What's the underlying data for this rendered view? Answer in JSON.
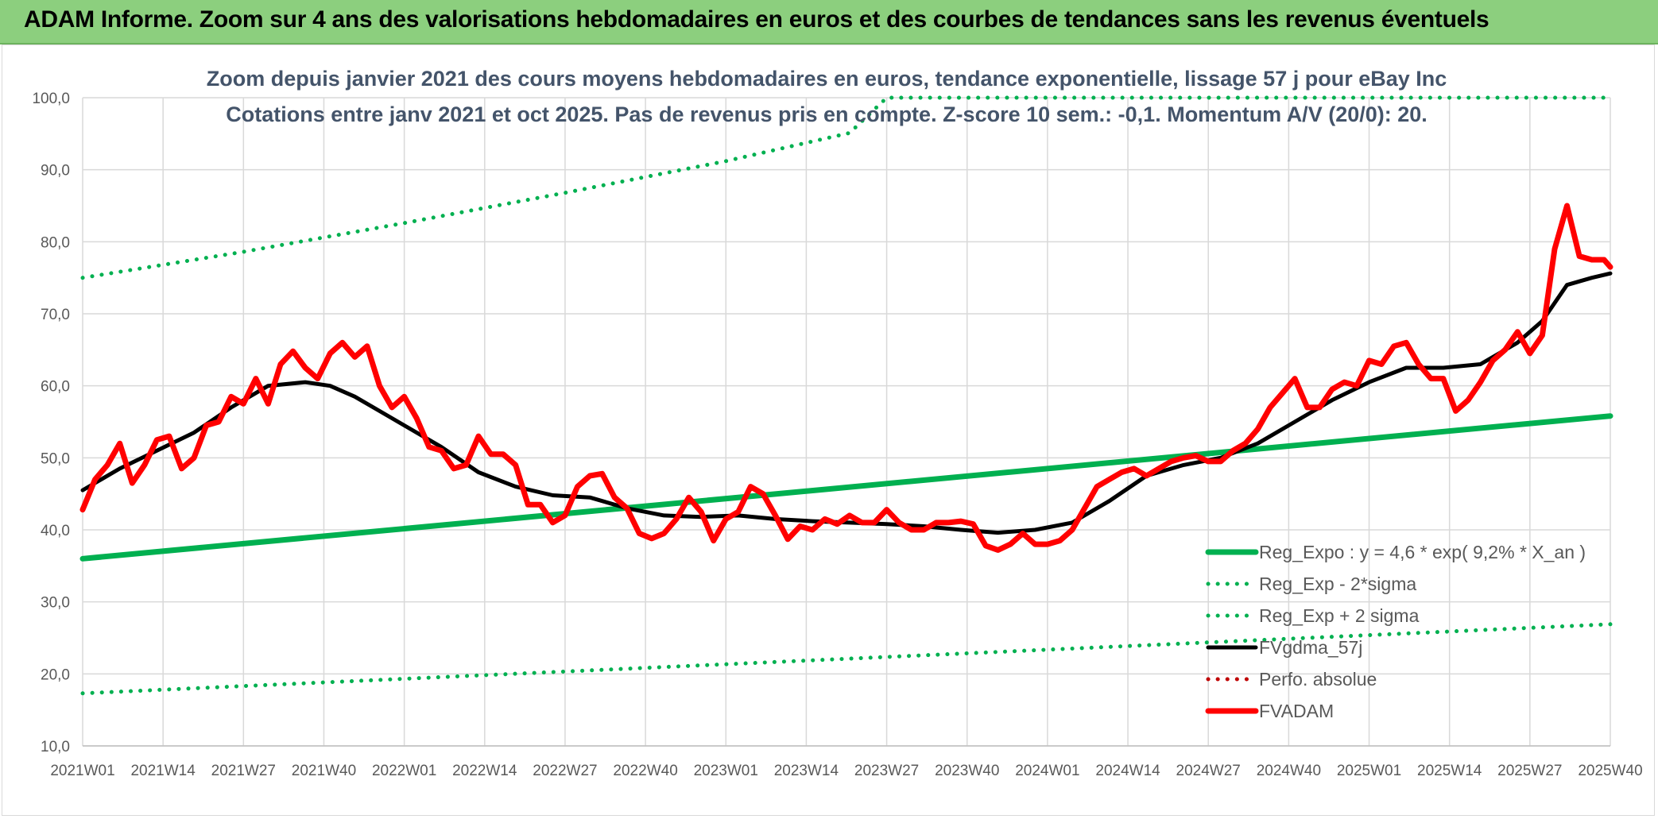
{
  "banner": {
    "title": "ADAM Informe. Zoom sur 4 ans des valorisations hebdomadaires en euros et des courbes de tendances sans les revenus éventuels"
  },
  "chart_data": {
    "type": "line",
    "title": "Zoom depuis janvier 2021 des cours moyens hebdomadaires en euros, tendance exponentielle, lissage 57 j pour eBay Inc",
    "subtitle": "Cotations entre janv 2021 et oct 2025. Pas de revenus pris en compte. Z-score 10 sem.: -0,1. Momentum A/V (20/0): 20.",
    "xlabel": "",
    "ylabel": "",
    "ylim": [
      10,
      100
    ],
    "yticks": [
      "100,0",
      "90,0",
      "80,0",
      "70,0",
      "60,0",
      "50,0",
      "40,0",
      "30,0",
      "20,0",
      "10,0"
    ],
    "ytick_values": [
      100,
      90,
      80,
      70,
      60,
      50,
      40,
      30,
      20,
      10
    ],
    "x_range": [
      0,
      247
    ],
    "categories": [
      "2021W01",
      "2021W14",
      "2021W27",
      "2021W40",
      "2022W01",
      "2022W14",
      "2022W27",
      "2022W40",
      "2023W01",
      "2023W14",
      "2023W27",
      "2023W40",
      "2024W01",
      "2024W14",
      "2024W27",
      "2024W40",
      "2025W01",
      "2025W14",
      "2025W27",
      "2025W40"
    ],
    "category_index": [
      0,
      13,
      26,
      39,
      52,
      65,
      78,
      91,
      104,
      117,
      130,
      143,
      156,
      169,
      182,
      195,
      208,
      221,
      234,
      247
    ],
    "grid": true,
    "legend_position": "bottom-right",
    "series": [
      {
        "name": "Reg_Expo : y = 4,6 * exp( 9,2% *  X_an )",
        "color": "#00b050",
        "style": "solid",
        "x": [
          0,
          247
        ],
        "values": [
          36.0,
          55.8
        ]
      },
      {
        "name": "Reg_Exp - 2*sigma",
        "color": "#00b050",
        "style": "dotted",
        "x": [
          0,
          247
        ],
        "values": [
          17.3,
          26.9
        ]
      },
      {
        "name": "Reg_Exp + 2 sigma",
        "color": "#00b050",
        "style": "dotted",
        "x": [
          0,
          26,
          52,
          78,
          104,
          124,
          130,
          160,
          200,
          247
        ],
        "values": [
          75.0,
          78.6,
          82.6,
          86.8,
          91.2,
          95.1,
          100.0,
          100.0,
          100.0,
          100.0
        ]
      },
      {
        "name": "FVgdma_57j",
        "color": "#000000",
        "style": "solid",
        "x": [
          0,
          6,
          12,
          18,
          24,
          30,
          36,
          40,
          44,
          48,
          52,
          58,
          64,
          70,
          76,
          82,
          88,
          94,
          100,
          106,
          112,
          118,
          124,
          130,
          136,
          142,
          148,
          154,
          160,
          166,
          172,
          178,
          184,
          190,
          196,
          202,
          208,
          214,
          220,
          226,
          232,
          236,
          240,
          244,
          247
        ],
        "values": [
          45.5,
          48.5,
          51.0,
          53.5,
          57.0,
          60.0,
          60.5,
          60.0,
          58.5,
          56.5,
          54.5,
          51.5,
          48.0,
          46.0,
          44.8,
          44.5,
          43.0,
          42.0,
          41.8,
          42.0,
          41.5,
          41.2,
          41.0,
          40.8,
          40.5,
          40.0,
          39.6,
          40.0,
          41.0,
          44.0,
          47.5,
          49.0,
          50.0,
          52.0,
          55.0,
          58.0,
          60.5,
          62.5,
          62.5,
          63.0,
          66.0,
          69.0,
          74.0,
          75.0,
          75.6
        ]
      },
      {
        "name": "Perfo. absolue",
        "color": "#c00000",
        "style": "dotted",
        "x": [],
        "values": []
      },
      {
        "name": "FVADAM",
        "color": "#ff0000",
        "style": "solid",
        "x": [
          0,
          2,
          4,
          6,
          8,
          10,
          12,
          14,
          16,
          18,
          20,
          22,
          24,
          26,
          28,
          30,
          32,
          34,
          36,
          38,
          40,
          42,
          44,
          46,
          48,
          50,
          52,
          54,
          56,
          58,
          60,
          62,
          64,
          66,
          68,
          70,
          72,
          74,
          76,
          78,
          80,
          82,
          84,
          86,
          88,
          90,
          92,
          94,
          96,
          98,
          100,
          102,
          104,
          106,
          108,
          110,
          112,
          114,
          116,
          118,
          120,
          122,
          124,
          126,
          128,
          130,
          132,
          134,
          136,
          138,
          140,
          142,
          144,
          146,
          148,
          150,
          152,
          154,
          156,
          158,
          160,
          162,
          164,
          166,
          168,
          170,
          172,
          174,
          176,
          178,
          180,
          182,
          184,
          186,
          188,
          190,
          192,
          194,
          196,
          198,
          200,
          202,
          204,
          206,
          208,
          210,
          212,
          214,
          216,
          218,
          220,
          222,
          224,
          226,
          228,
          230,
          232,
          234,
          236,
          238,
          240,
          242,
          244,
          246,
          247
        ],
        "values": [
          42.8,
          47.0,
          49.0,
          52.0,
          46.5,
          49.0,
          52.5,
          53.0,
          48.5,
          50.0,
          54.5,
          55.0,
          58.5,
          57.5,
          61.0,
          57.5,
          63.0,
          64.8,
          62.5,
          61.0,
          64.5,
          66.0,
          64.0,
          65.5,
          60.0,
          57.0,
          58.5,
          55.5,
          51.5,
          51.0,
          48.5,
          49.0,
          53.0,
          50.5,
          50.5,
          49.0,
          43.5,
          43.5,
          41.0,
          42.0,
          46.0,
          47.5,
          47.8,
          44.5,
          43.0,
          39.5,
          38.8,
          39.5,
          41.5,
          44.5,
          42.5,
          38.5,
          41.5,
          42.5,
          46.0,
          45.0,
          42.0,
          38.7,
          40.5,
          40.0,
          41.5,
          40.8,
          42.0,
          41.0,
          41.0,
          42.8,
          41.0,
          40.0,
          40.0,
          41.0,
          41.0,
          41.2,
          40.8,
          37.8,
          37.2,
          38.0,
          39.5,
          38.0,
          38.0,
          38.5,
          40.0,
          43.0,
          46.0,
          47.0,
          48.0,
          48.5,
          47.5,
          48.5,
          49.5,
          50.0,
          50.3,
          49.5,
          49.5,
          51.0,
          52.0,
          54.0,
          57.0,
          59.0,
          61.0,
          57.0,
          57.0,
          59.5,
          60.5,
          60.0,
          63.5,
          63.0,
          65.5,
          66.0,
          63.0,
          61.0,
          61.0,
          56.5,
          58.0,
          60.5,
          63.5,
          65.0,
          67.5,
          64.5,
          67.0,
          79.0,
          85.0,
          78.0,
          77.5,
          77.5,
          76.5
        ]
      }
    ]
  }
}
